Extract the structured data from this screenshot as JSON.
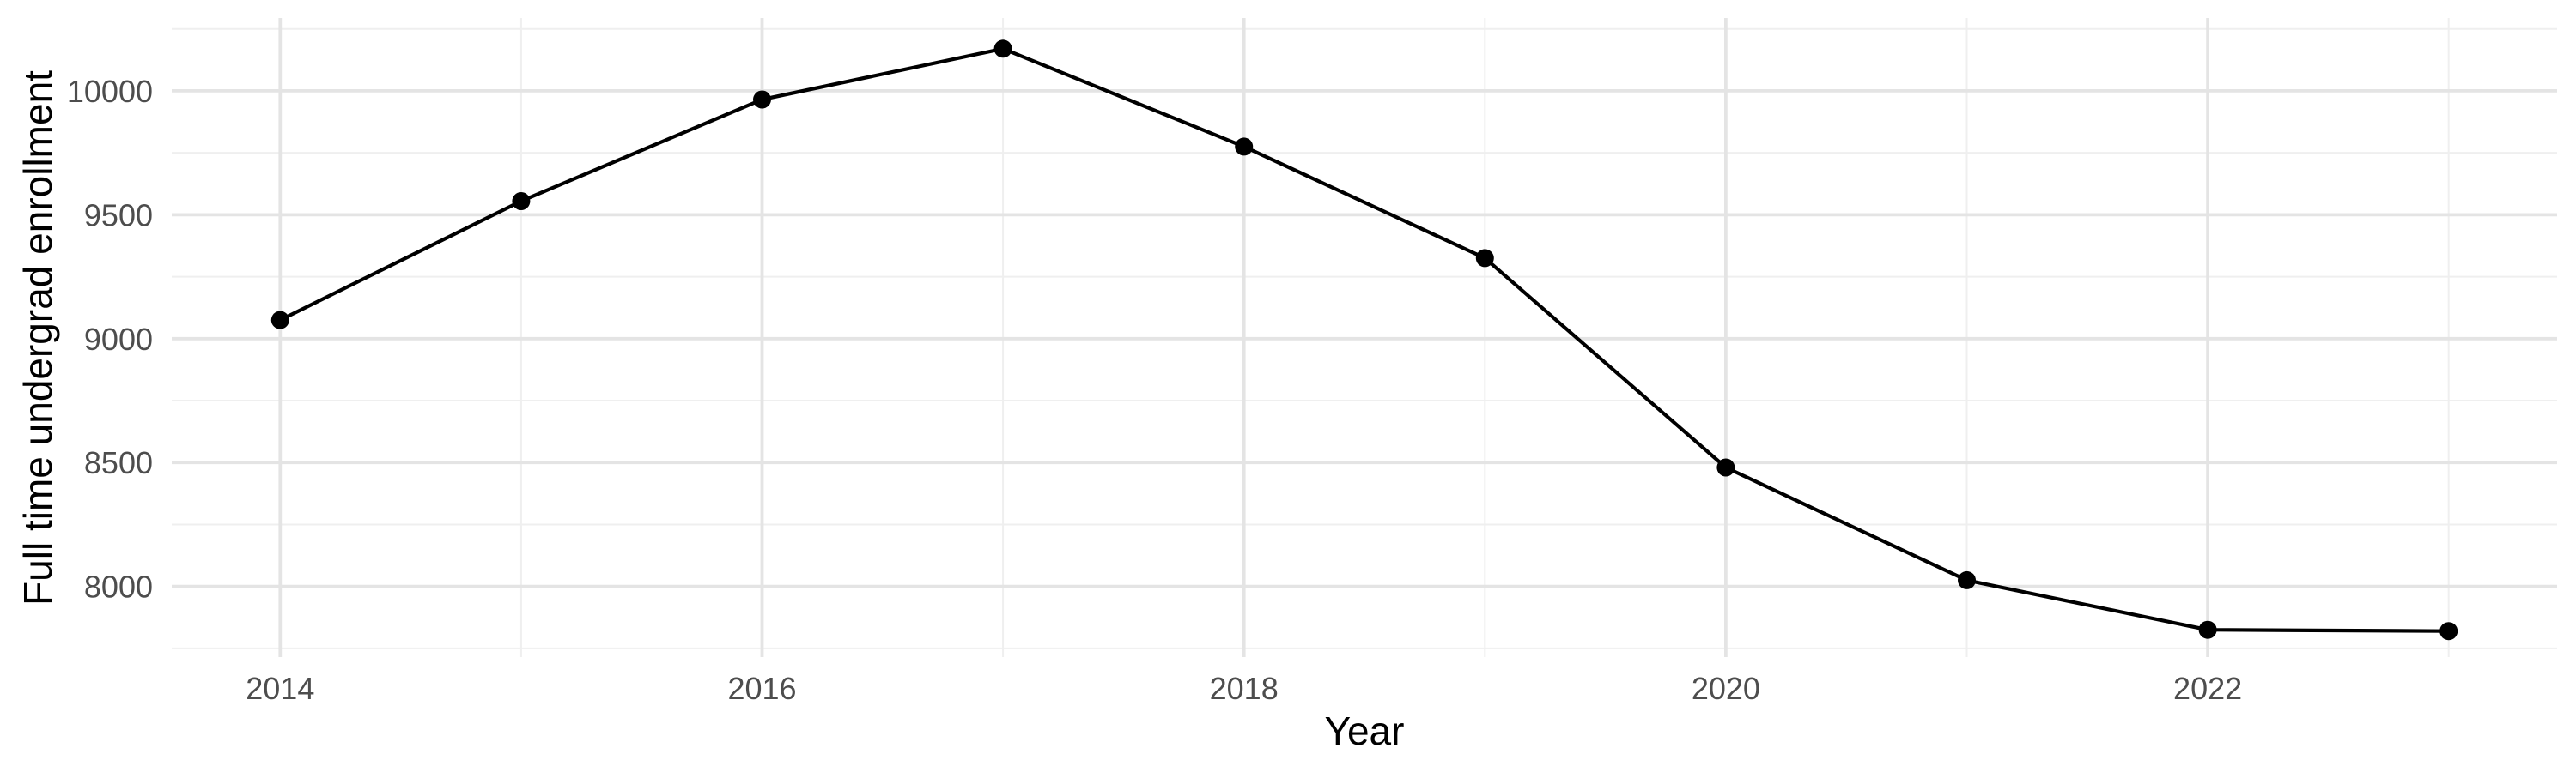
{
  "chart_data": {
    "type": "line",
    "title": "",
    "xlabel": "Year",
    "ylabel": "Full time undergrad enrollment",
    "x": [
      2014,
      2015,
      2016,
      2017,
      2018,
      2019,
      2020,
      2021,
      2022,
      2023
    ],
    "series": [
      {
        "name": "Full time undergrad enrollment",
        "values": [
          9075,
          9555,
          9965,
          10170,
          9775,
          9325,
          8480,
          8025,
          7825,
          7820
        ]
      }
    ],
    "x_ticks": [
      2014,
      2016,
      2018,
      2020,
      2022
    ],
    "y_ticks": [
      8000,
      8500,
      9000,
      9500,
      10000
    ],
    "xlim": [
      2013.55,
      2023.45
    ],
    "ylim": [
      7715,
      10294
    ],
    "grid": "major+minor",
    "legend": "none",
    "colors": {
      "background": "#FFFFFF",
      "line": "#000000",
      "point": "#000000",
      "grid_major": "#E4E4E4",
      "grid_minor": "#EFEFEF",
      "tick_label": "#4D4D4D",
      "axis_title": "#000000"
    }
  }
}
